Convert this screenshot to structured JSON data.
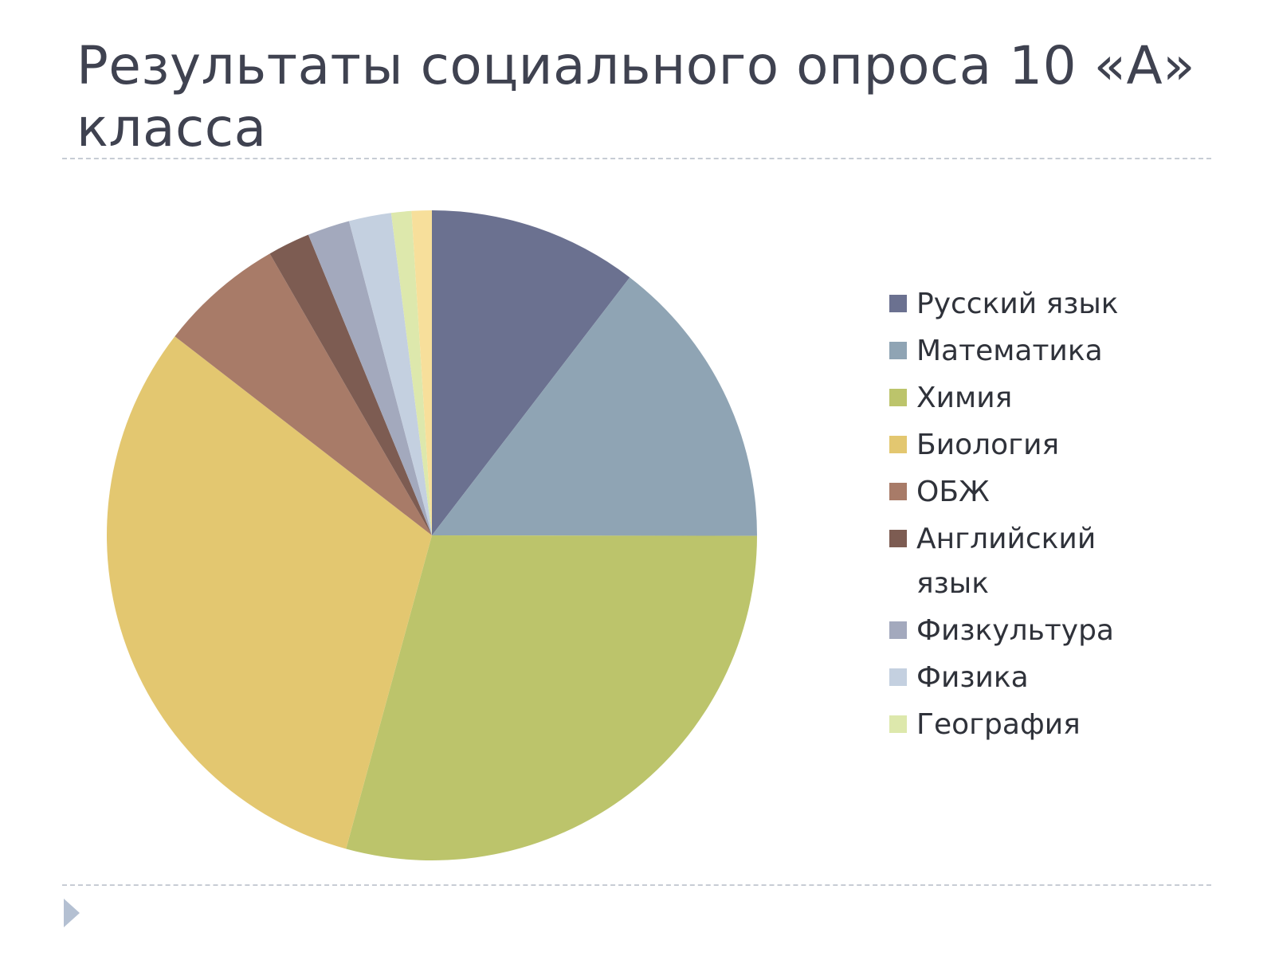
{
  "slide": {
    "title": "Результаты социального опроса 10 «А» класса"
  },
  "chart_data": {
    "type": "pie",
    "start_angle_deg": 0,
    "direction": "clockwise",
    "legend_position": "right",
    "categories": [
      "Русский язык",
      "Математика",
      "Химия",
      "Биология",
      "ОБЖ",
      "Английский язык",
      "Физкультура",
      "Физика",
      "География",
      ""
    ],
    "values": [
      10.4,
      14.6,
      29.2,
      31.2,
      6.2,
      2.1,
      2.1,
      2.1,
      1.0,
      1.0
    ],
    "colors": [
      "#6b7190",
      "#8fa4b4",
      "#bcc46b",
      "#e3c770",
      "#a87b68",
      "#7d5c52",
      "#a3a9bd",
      "#c4d0e0",
      "#dde8ac",
      "#f7df9b"
    ],
    "legend_entries": [
      {
        "label": "Русский язык",
        "color": "#6b7190"
      },
      {
        "label": "Математика",
        "color": "#8fa4b4"
      },
      {
        "label": "Химия",
        "color": "#bcc46b"
      },
      {
        "label": "Биология",
        "color": "#e3c770"
      },
      {
        "label": "ОБЖ",
        "color": "#a87b68"
      },
      {
        "label": "Английский язык",
        "color": "#7d5c52"
      },
      {
        "label": "Физкультура",
        "color": "#a3a9bd"
      },
      {
        "label": "Физика",
        "color": "#c4d0e0"
      },
      {
        "label": "География",
        "color": "#dde8ac"
      }
    ]
  },
  "icons": {
    "nav_arrow": "play-triangle-icon"
  }
}
